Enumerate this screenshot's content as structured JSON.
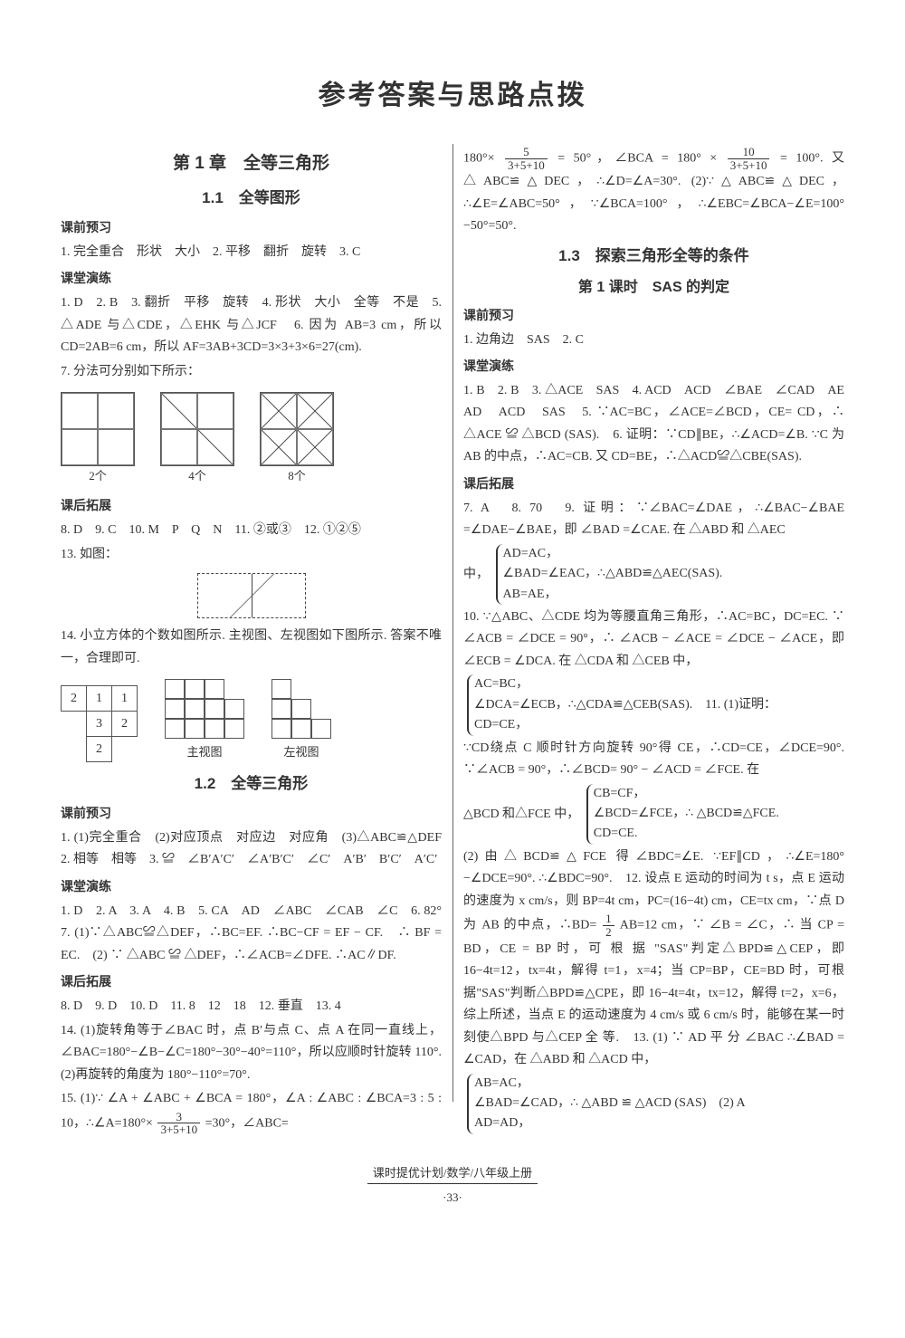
{
  "page_title": "参考答案与思路点拨",
  "footer_text": "课时提优计划/数学/八年级上册",
  "page_number": "·33·",
  "typography": {
    "title_fontsize": 30,
    "section_fontsize": 17,
    "body_fontsize": 14,
    "font_family": "SimSun/宋体",
    "heading_font": "SimHei/黑体",
    "text_color": "#333333",
    "background_color": "#ffffff",
    "column_divider_color": "#666666"
  },
  "left": {
    "chapter": "第 1 章　全等三角形",
    "s1_1": "1.1　全等图形",
    "pre_label": "课前预习",
    "pre_text": "1. 完全重合　形状　大小　2. 平移　翻折　旋转　3. C",
    "class_label": "课堂演练",
    "class_text_a": "1. D　2. B　3. 翻折　平移　旋转　4. 形状　大小　全等　不是　5. △ADE 与△CDE，△EHK 与△JCF　6. 因为 AB=3 cm，所以 CD=2AB=6 cm，所以 AF=3AB+3CD=3×3+3×6=27(cm).",
    "class_text_b": "7. 分法可分别如下所示：",
    "grid_labels": {
      "a": "2个",
      "b": "4个",
      "c": "8个"
    },
    "ext_label": "课后拓展",
    "ext_text_a": "8. D　9. C　10. M　P　Q　N　11. ②或③　12. ①②⑤",
    "ext_text_b": "13. 如图：",
    "ext_text_c": "14. 小立方体的个数如图所示. 主视图、左视图如下图所示. 答案不唯一，合理即可.",
    "num_table": {
      "rows": [
        [
          "2",
          "1",
          "1"
        ],
        [
          "",
          "3",
          "2"
        ],
        [
          "",
          "2",
          ""
        ]
      ],
      "border_color": "#555555",
      "cell_size": 28
    },
    "views": {
      "front": "主视图",
      "left": "左视图"
    },
    "s1_2": "1.2　全等三角形",
    "pre2_text": "1. (1)完全重合　(2)对应顶点　对应边　对应角　(3)△ABC≌△DEF　2. 相等　相等　3. ≌　∠B′A′C′　∠A′B′C′　∠C′　A′B′　B′C′　A′C′",
    "class2_text": "1. D　2. A　3. A　4. B　5. CA　AD　∠ABC　∠CAB　∠C　6. 82°　7. (1)∵△ABC≌△DEF，∴BC=EF. ∴BC−CF = EF − CF.　∴ BF = EC.　(2) ∵ △ABC ≌ △DEF，∴∠ACB=∠DFE. ∴AC∥DF.",
    "ext2_text_a": "8. D　9. D　10. D　11. 8　12　18　12. 垂直　13. 4",
    "ext2_text_b": "14. (1)旋转角等于∠BAC 时，点 B′与点 C、点 A 在同一直线上，∠BAC=180°−∠B−∠C=180°−30°−40°=110°，所以应顺时针旋转 110°.　(2)再旋转的角度为 180°−110°=70°.",
    "ext2_text_c_a": "15. (1)∵ ∠A + ∠ABC + ∠BCA = 180°，∠A : ∠ABC : ∠BCA=3 : 5 : 10，∴∠A=180°×",
    "ext2_text_c_b": "=30°，∠ABC=",
    "frac1": {
      "num": "3",
      "den": "3+5+10"
    }
  },
  "right": {
    "cont_a": "180°×",
    "frac2": {
      "num": "5",
      "den": "3+5+10"
    },
    "cont_b": " = 50°，∠BCA = 180° × ",
    "frac3": {
      "num": "10",
      "den": "3+5+10"
    },
    "cont_c": " = 100°. 又 △ABC≌△DEC，∴∠D=∠A=30°. (2)∵△ABC≌△DEC，∴∠E=∠ABC=50°，∵∠BCA=100°，∴∠EBC=∠BCA−∠E=100°−50°=50°.",
    "s1_3": "1.3　探索三角形全等的条件",
    "lesson1": "第 1 课时　SAS 的判定",
    "pre_label": "课前预习",
    "pre_text": "1. 边角边　SAS　2. C",
    "class_label": "课堂演练",
    "class_text_a": "1. B　2. B　3. △ACE　SAS　4. ACD　ACD　∠BAE　∠CAD　AE　AD　ACD　SAS　5. ∵AC=BC，∠ACE=∠BCD，CE= CD，∴ △ACE ≌ △BCD (SAS).　6. 证明：∵CD∥BE，∴∠ACD=∠B. ∵C 为 AB 的中点，∴AC=CB. 又 CD=BE，∴△ACD≌△CBE(SAS).",
    "ext_label": "课后拓展",
    "ext_text_a": "7. A　8. 70　9. 证明：∵∠BAC=∠DAE，∴∠BAC−∠BAE =∠DAE−∠BAE，即 ∠BAD =∠CAE. 在 △ABD 和 △AEC",
    "brace_intro": "中，",
    "brace_items": [
      "AD=AC，",
      "∠BAD=∠EAC，∴△ABD≌△AEC(SAS).",
      "AB=AE，"
    ],
    "ext_text_b": "10. ∵△ABC、△CDE 均为等腰直角三角形，∴AC=BC，DC=EC. ∵ ∠ACB = ∠DCE = 90°，∴ ∠ACB − ∠ACE = ∠DCE − ∠ACE，即 ∠ECB = ∠DCA. 在 △CDA 和 △CEB 中，",
    "brace2_items": [
      "AC=BC，",
      "∠DCA=∠ECB，∴△CDA≌△CEB(SAS).　11. (1)证明：",
      "CD=CE，"
    ],
    "ext_text_c": "∵CD绕点 C 顺时针方向旋转 90°得 CE，∴CD=CE，∠DCE=90°. ∵∠ACB = 90°，∴∠BCD= 90° − ∠ACD = ∠FCE. 在",
    "brace3_intro": "△BCD 和△FCE 中，",
    "brace3_items": [
      "CB=CF，",
      "∠BCD=∠FCE，∴ △BCD≌△FCE.",
      "CD=CE."
    ],
    "ext_text_d_a": "(2)由△BCD≌△FCE 得∠BDC=∠E. ∵EF∥CD，∴∠E=180°−∠DCE=90°. ∴∠BDC=90°.　12. 设点 E 运动的时间为 t s，点 E 运动的速度为 x cm/s，则 BP=4t cm，PC=(16−4t) cm，CE=tx cm，∵点 D 为 AB 的中点，∴BD=",
    "frac4": {
      "num": "1",
      "den": "2"
    },
    "ext_text_d_b": "AB=12 cm，∵ ∠B = ∠C，∴ 当 CP = BD，CE = BP 时，可 根 据 \"SAS\"判定△BPD≌△CEP，即 16−4t=12，tx=4t，解得 t=1，x=4；当 CP=BP，CE=BD 时，可根据\"SAS\"判断△BPD≌△CPE，即 16−4t=4t，tx=12，解得 t=2，x=6，综上所述，当点 E 的运动速度为 4 cm/s 或 6 cm/s 时，能够在某一时刻使△BPD 与△CEP 全 等.　13. (1) ∵ AD 平 分 ∠BAC ∴∠BAD = ∠CAD，在 △ABD 和 △ACD 中，",
    "brace4_items": [
      "AB=AC，",
      "∠BAD=∠CAD，∴ △ABD ≌ △ACD (SAS)　(2) A",
      "AD=AD，"
    ]
  }
}
